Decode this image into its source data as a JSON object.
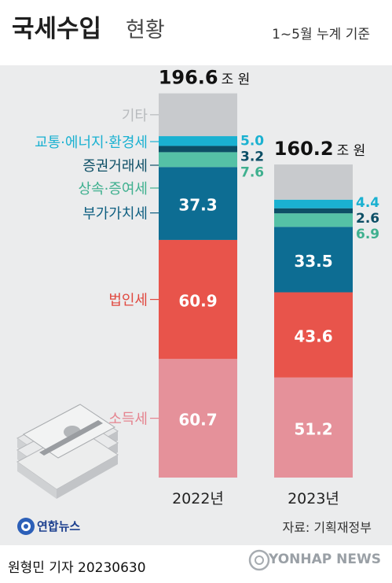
{
  "header": {
    "title": "국세수입",
    "subtitle": "현황",
    "note": "1~5월 누계 기준"
  },
  "footer": {
    "source": "자료: 기획재정부",
    "reporter": "원형민 기자",
    "date": "20230630",
    "logo": "연합뉴스",
    "watermark": "YONHAP NEWS"
  },
  "colors": {
    "기타": "#c8cacd",
    "교통·에너지·환경세": "#1ab1d1",
    "증권거래세": "#0d4f66",
    "상속·증여세": "#55c1a6",
    "부가가치세": "#0d6d93",
    "법인세": "#e8544b",
    "소득세": "#e5919a"
  },
  "chart_data": {
    "type": "bar",
    "stacked": true,
    "categories": [
      "2022년",
      "2023년"
    ],
    "unit": "조 원",
    "totals": [
      196.6,
      160.2
    ],
    "series": [
      {
        "name": "소득세",
        "values": [
          60.7,
          51.2
        ]
      },
      {
        "name": "법인세",
        "values": [
          60.9,
          43.6
        ]
      },
      {
        "name": "부가가치세",
        "values": [
          37.3,
          33.5
        ]
      },
      {
        "name": "상속·증여세",
        "values": [
          7.6,
          6.9
        ]
      },
      {
        "name": "증권거래세",
        "values": [
          3.2,
          2.6
        ]
      },
      {
        "name": "교통·에너지·환경세",
        "values": [
          5.0,
          4.4
        ]
      },
      {
        "name": "기타",
        "values": [
          21.9,
          18.0
        ]
      }
    ]
  }
}
